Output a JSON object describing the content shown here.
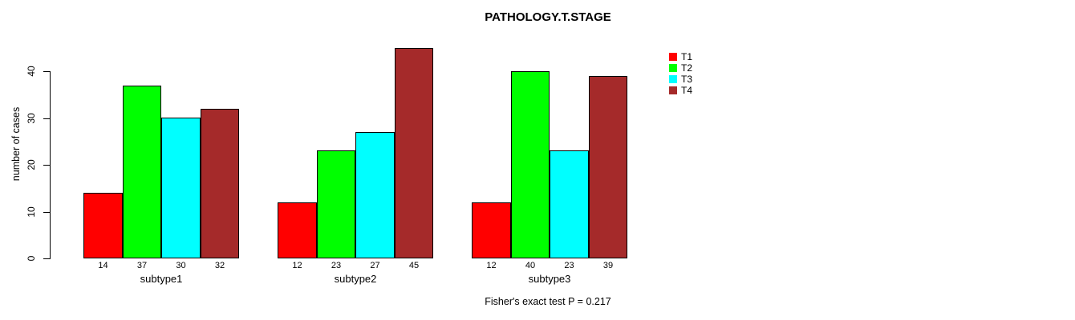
{
  "chart": {
    "title": "PATHOLOGY.T.STAGE",
    "ylabel": "number of cases",
    "annotation": "Fisher's exact test P = 0.217"
  },
  "chart_data": {
    "type": "bar",
    "title": "PATHOLOGY.T.STAGE",
    "categories": [
      "subtype1",
      "subtype2",
      "subtype3"
    ],
    "series": [
      {
        "name": "T1",
        "color": "#ff0000",
        "values": [
          14,
          12,
          12
        ]
      },
      {
        "name": "T2",
        "color": "#00ff00",
        "values": [
          37,
          23,
          40
        ]
      },
      {
        "name": "T3",
        "color": "#00ffff",
        "values": [
          30,
          27,
          23
        ]
      },
      {
        "name": "T4",
        "color": "#a52a2a",
        "values": [
          32,
          45,
          39
        ]
      }
    ],
    "xlabel": "",
    "ylabel": "number of cases",
    "ylim": [
      0,
      45
    ],
    "yticks": [
      0,
      10,
      20,
      30,
      40
    ],
    "bar_value_labels": true,
    "bar_border_color": "#000000",
    "grid": false,
    "legend_position": "top-right",
    "annotation": "Fisher's exact test P = 0.217"
  },
  "legend": {
    "items": [
      {
        "label": "T1",
        "color": "#ff0000"
      },
      {
        "label": "T2",
        "color": "#00ff00"
      },
      {
        "label": "T3",
        "color": "#00ffff"
      },
      {
        "label": "T4",
        "color": "#a52a2a"
      }
    ]
  }
}
